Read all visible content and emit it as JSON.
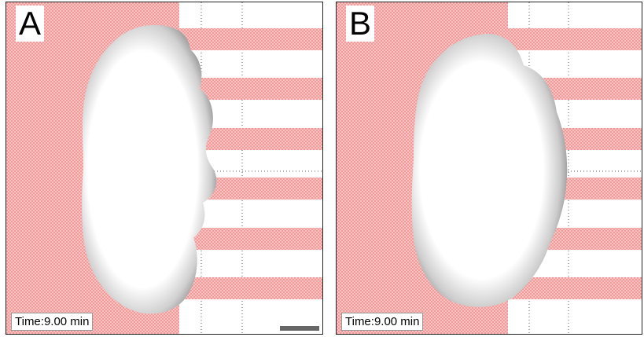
{
  "panels": [
    {
      "label": "A",
      "time_text": "Time:9.00 min"
    },
    {
      "label": "B",
      "time_text": "Time:9.00 min"
    }
  ],
  "colors": {
    "pattern_pink": "#f4a9a9",
    "border": "#222222",
    "scale_bar": "#666666"
  }
}
